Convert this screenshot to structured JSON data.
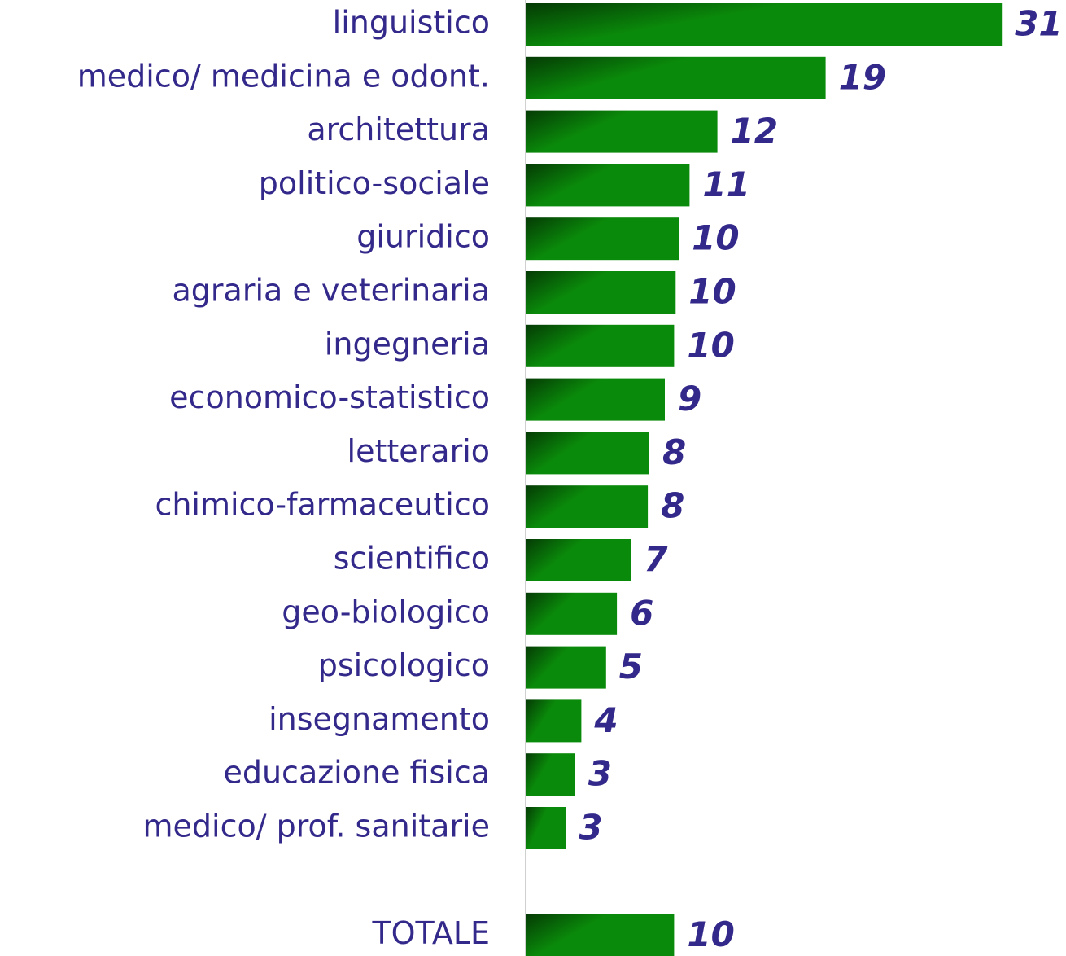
{
  "chart_data": {
    "type": "bar",
    "orientation": "horizontal",
    "categories": [
      "linguistico",
      "medico/ medicina e odont.",
      "architettura",
      "politico-sociale",
      "giuridico",
      "agraria e veterinaria",
      "ingegneria",
      "economico-statistico",
      "letterario",
      "chimico-farmaceutico",
      "scientifico",
      "geo-biologico",
      "psicologico",
      "insegnamento",
      "educazione fisica",
      "medico/ prof. sanitarie",
      "TOTALE"
    ],
    "values": [
      30.8,
      19.4,
      12.4,
      10.6,
      9.9,
      9.7,
      9.6,
      9.0,
      8.0,
      7.9,
      6.8,
      5.9,
      5.2,
      3.6,
      3.2,
      2.6,
      9.6
    ],
    "value_labels": [
      "31",
      "19",
      "12",
      "11",
      "10",
      "10",
      "10",
      "9",
      "8",
      "8",
      "7",
      "6",
      "5",
      "4",
      "3",
      "3",
      "10"
    ],
    "color": "#0a8a0a",
    "xlim": [
      0,
      34
    ]
  }
}
